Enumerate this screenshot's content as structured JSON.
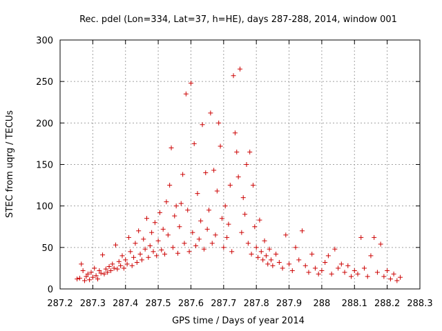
{
  "chart_data": {
    "type": "scatter",
    "title": "Rec. pdel (Lon=334, Lat=37, h=HE), days 287-288, 2014, window 001",
    "xlabel": "GPS time / Days of year 2014",
    "ylabel": "STEC from uqrg / TECUs",
    "xlim": [
      287.2,
      288.3
    ],
    "ylim": [
      0,
      300
    ],
    "xticks": [
      287.2,
      287.3,
      287.4,
      287.5,
      287.6,
      287.7,
      287.8,
      287.9,
      288.0,
      288.1,
      288.2,
      288.3
    ],
    "xtick_labels": [
      "287.2",
      "287.3",
      "287.4",
      "287.5",
      "287.6",
      "287.7",
      "287.8",
      "287.9",
      "288",
      "288.1",
      "288.2",
      "288.3"
    ],
    "yticks": [
      0,
      50,
      100,
      150,
      200,
      250,
      300
    ],
    "ytick_labels": [
      "0",
      "50",
      "100",
      "150",
      "200",
      "250",
      "300"
    ],
    "grid": true,
    "marker": "+",
    "color": "#cc0000",
    "series": [
      {
        "points": [
          [
            287.252,
            12
          ],
          [
            287.26,
            13
          ],
          [
            287.265,
            30
          ],
          [
            287.27,
            22
          ],
          [
            287.275,
            10
          ],
          [
            287.28,
            15
          ],
          [
            287.285,
            18
          ],
          [
            287.29,
            11
          ],
          [
            287.295,
            20
          ],
          [
            287.3,
            14
          ],
          [
            287.305,
            25
          ],
          [
            287.31,
            16
          ],
          [
            287.315,
            12
          ],
          [
            287.32,
            22
          ],
          [
            287.325,
            19
          ],
          [
            287.33,
            41
          ],
          [
            287.335,
            18
          ],
          [
            287.34,
            24
          ],
          [
            287.345,
            20
          ],
          [
            287.35,
            27
          ],
          [
            287.355,
            22
          ],
          [
            287.36,
            30
          ],
          [
            287.365,
            25
          ],
          [
            287.37,
            53
          ],
          [
            287.375,
            24
          ],
          [
            287.38,
            33
          ],
          [
            287.385,
            28
          ],
          [
            287.39,
            40
          ],
          [
            287.395,
            25
          ],
          [
            287.4,
            35
          ],
          [
            287.405,
            30
          ],
          [
            287.41,
            62
          ],
          [
            287.415,
            45
          ],
          [
            287.42,
            28
          ],
          [
            287.425,
            38
          ],
          [
            287.43,
            55
          ],
          [
            287.435,
            32
          ],
          [
            287.44,
            70
          ],
          [
            287.445,
            42
          ],
          [
            287.45,
            35
          ],
          [
            287.455,
            60
          ],
          [
            287.46,
            48
          ],
          [
            287.465,
            85
          ],
          [
            287.47,
            38
          ],
          [
            287.475,
            52
          ],
          [
            287.48,
            68
          ],
          [
            287.485,
            45
          ],
          [
            287.49,
            80
          ],
          [
            287.495,
            40
          ],
          [
            287.5,
            58
          ],
          [
            287.505,
            92
          ],
          [
            287.51,
            47
          ],
          [
            287.515,
            72
          ],
          [
            287.52,
            42
          ],
          [
            287.525,
            105
          ],
          [
            287.53,
            65
          ],
          [
            287.535,
            125
          ],
          [
            287.54,
            170
          ],
          [
            287.545,
            50
          ],
          [
            287.55,
            88
          ],
          [
            287.555,
            100
          ],
          [
            287.56,
            43
          ],
          [
            287.565,
            75
          ],
          [
            287.57,
            103
          ],
          [
            287.575,
            138
          ],
          [
            287.58,
            55
          ],
          [
            287.585,
            235
          ],
          [
            287.59,
            95
          ],
          [
            287.595,
            45
          ],
          [
            287.6,
            248
          ],
          [
            287.605,
            68
          ],
          [
            287.61,
            175
          ],
          [
            287.615,
            52
          ],
          [
            287.62,
            115
          ],
          [
            287.625,
            60
          ],
          [
            287.63,
            82
          ],
          [
            287.635,
            198
          ],
          [
            287.64,
            48
          ],
          [
            287.645,
            140
          ],
          [
            287.65,
            72
          ],
          [
            287.655,
            95
          ],
          [
            287.66,
            212
          ],
          [
            287.665,
            55
          ],
          [
            287.67,
            143
          ],
          [
            287.675,
            65
          ],
          [
            287.68,
            118
          ],
          [
            287.685,
            200
          ],
          [
            287.69,
            172
          ],
          [
            287.695,
            85
          ],
          [
            287.7,
            50
          ],
          [
            287.705,
            100
          ],
          [
            287.71,
            62
          ],
          [
            287.715,
            78
          ],
          [
            287.72,
            125
          ],
          [
            287.725,
            45
          ],
          [
            287.73,
            257
          ],
          [
            287.735,
            188
          ],
          [
            287.74,
            165
          ],
          [
            287.745,
            135
          ],
          [
            287.75,
            265
          ],
          [
            287.755,
            68
          ],
          [
            287.76,
            110
          ],
          [
            287.765,
            90
          ],
          [
            287.77,
            150
          ],
          [
            287.775,
            55
          ],
          [
            287.78,
            165
          ],
          [
            287.785,
            42
          ],
          [
            287.79,
            125
          ],
          [
            287.795,
            75
          ],
          [
            287.8,
            50
          ],
          [
            287.805,
            38
          ],
          [
            287.81,
            83
          ],
          [
            287.815,
            45
          ],
          [
            287.82,
            35
          ],
          [
            287.825,
            58
          ],
          [
            287.83,
            40
          ],
          [
            287.835,
            30
          ],
          [
            287.84,
            48
          ],
          [
            287.845,
            35
          ],
          [
            287.85,
            28
          ],
          [
            287.86,
            42
          ],
          [
            287.87,
            32
          ],
          [
            287.88,
            25
          ],
          [
            287.89,
            65
          ],
          [
            287.9,
            30
          ],
          [
            287.91,
            22
          ],
          [
            287.92,
            50
          ],
          [
            287.93,
            35
          ],
          [
            287.94,
            70
          ],
          [
            287.95,
            28
          ],
          [
            287.96,
            20
          ],
          [
            287.97,
            42
          ],
          [
            287.98,
            25
          ],
          [
            287.99,
            18
          ],
          [
            288.0,
            22
          ],
          [
            288.01,
            32
          ],
          [
            288.02,
            40
          ],
          [
            288.03,
            18
          ],
          [
            288.04,
            48
          ],
          [
            288.05,
            25
          ],
          [
            288.06,
            30
          ],
          [
            288.07,
            20
          ],
          [
            288.08,
            28
          ],
          [
            288.09,
            15
          ],
          [
            288.1,
            22
          ],
          [
            288.11,
            18
          ],
          [
            288.12,
            62
          ],
          [
            288.13,
            25
          ],
          [
            288.14,
            15
          ],
          [
            288.15,
            40
          ],
          [
            288.16,
            62
          ],
          [
            288.17,
            20
          ],
          [
            288.18,
            54
          ],
          [
            288.19,
            15
          ],
          [
            288.2,
            22
          ],
          [
            288.21,
            12
          ],
          [
            288.22,
            18
          ],
          [
            288.23,
            10
          ],
          [
            288.24,
            14
          ]
        ]
      }
    ]
  }
}
